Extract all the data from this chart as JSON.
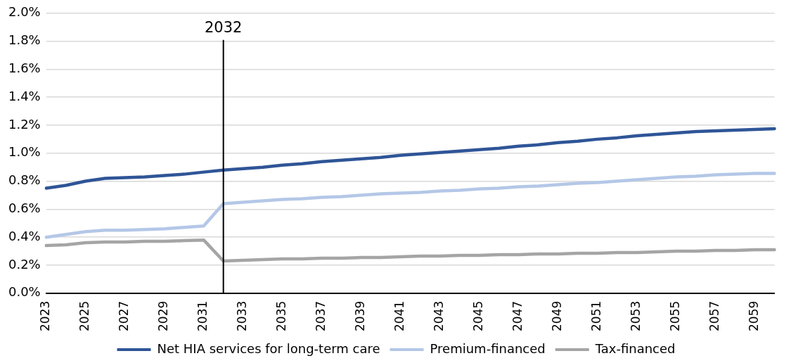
{
  "chart_data": {
    "type": "line",
    "categories": [
      "2023",
      null,
      "2025",
      null,
      "2027",
      null,
      "2029",
      null,
      "2031",
      null,
      "2033",
      null,
      "2035",
      null,
      "2037",
      null,
      "2039",
      null,
      "2041",
      null,
      "2043",
      null,
      "2045",
      null,
      "2047",
      null,
      "2049",
      null,
      "2051",
      null,
      "2053",
      null,
      "2055",
      null,
      "2057",
      null,
      "2059",
      null
    ],
    "series": [
      {
        "name": "Net HIA services for long-term care",
        "color": "#2f5597",
        "values": [
          0.75,
          0.77,
          0.8,
          0.82,
          0.825,
          0.83,
          0.84,
          0.85,
          0.865,
          0.88,
          0.89,
          0.9,
          0.915,
          0.925,
          0.94,
          0.95,
          0.96,
          0.97,
          0.985,
          0.995,
          1.005,
          1.015,
          1.025,
          1.035,
          1.05,
          1.06,
          1.075,
          1.085,
          1.1,
          1.11,
          1.125,
          1.135,
          1.145,
          1.155,
          1.16,
          1.165,
          1.17,
          1.175
        ]
      },
      {
        "name": "Premium-financed",
        "color": "#b4c7e7",
        "values": [
          0.4,
          0.42,
          0.44,
          0.45,
          0.45,
          0.455,
          0.46,
          0.47,
          0.48,
          0.64,
          0.65,
          0.66,
          0.67,
          0.675,
          0.685,
          0.69,
          0.7,
          0.71,
          0.715,
          0.72,
          0.73,
          0.735,
          0.745,
          0.75,
          0.76,
          0.765,
          0.775,
          0.785,
          0.79,
          0.8,
          0.81,
          0.82,
          0.83,
          0.835,
          0.845,
          0.85,
          0.855,
          0.855
        ]
      },
      {
        "name": "Tax-financed",
        "color": "#a5a5a5",
        "values": [
          0.34,
          0.345,
          0.36,
          0.365,
          0.365,
          0.37,
          0.37,
          0.375,
          0.38,
          0.23,
          0.235,
          0.24,
          0.245,
          0.245,
          0.25,
          0.25,
          0.255,
          0.255,
          0.26,
          0.265,
          0.265,
          0.27,
          0.27,
          0.275,
          0.275,
          0.28,
          0.28,
          0.285,
          0.285,
          0.29,
          0.29,
          0.295,
          0.3,
          0.3,
          0.305,
          0.305,
          0.31,
          0.31
        ]
      }
    ],
    "ylim": [
      0,
      2
    ],
    "yticks": [
      {
        "value": 0,
        "label": "0.0%"
      },
      {
        "value": 0.2,
        "label": "0.2%"
      },
      {
        "value": 0.4,
        "label": "0.4%"
      },
      {
        "value": 0.6,
        "label": "0.6%"
      },
      {
        "value": 0.8,
        "label": "0.8%"
      },
      {
        "value": 1,
        "label": "1.0%"
      },
      {
        "value": 1.2,
        "label": "1.2%"
      },
      {
        "value": 1.4,
        "label": "1.4%"
      },
      {
        "value": 1.6,
        "label": "1.6%"
      },
      {
        "value": 1.8,
        "label": "1.8%"
      },
      {
        "value": 2,
        "label": "2.0%"
      }
    ],
    "annotations": [
      "2032"
    ],
    "grid": "y",
    "legend": "bottom",
    "marker": "none",
    "line_style": "solid"
  }
}
